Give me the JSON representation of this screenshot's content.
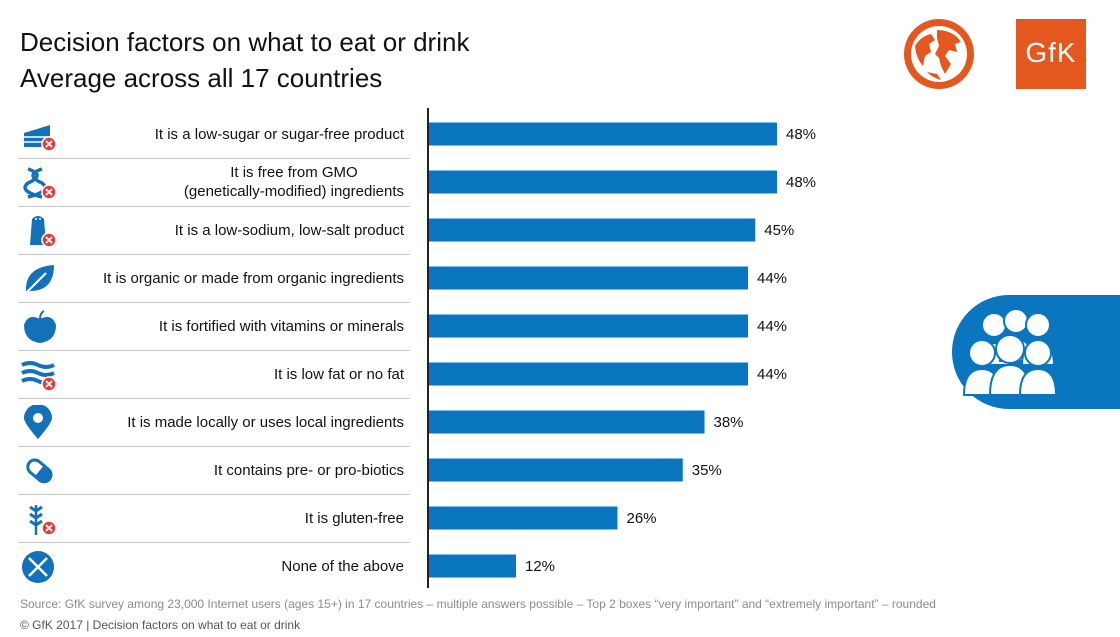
{
  "title": {
    "line1": "Decision factors on what to eat or drink",
    "line2": "Average across all 17 countries"
  },
  "brand": {
    "logo_text": "GfK",
    "logo_color": "#e4581f",
    "bar_color": "#0a76bf",
    "icon_color": "#1271b8",
    "cross_color": "#e63b3b"
  },
  "chart_data": {
    "type": "bar",
    "orientation": "horizontal",
    "categories": [
      "It is a low-sugar or sugar-free product",
      "It is free from GMO\n(genetically-modified) ingredients",
      "It is a low-sodium, low-salt product",
      "It is organic or made from organic ingredients",
      "It is fortified with vitamins or minerals",
      "It is low fat or no fat",
      "It is made locally or uses local ingredients",
      "It contains pre- or pro-biotics",
      "It is gluten-free",
      "None of the above"
    ],
    "values": [
      48,
      48,
      45,
      44,
      44,
      44,
      38,
      35,
      26,
      12
    ],
    "value_labels": [
      "48%",
      "48%",
      "45%",
      "44%",
      "44%",
      "44%",
      "38%",
      "35%",
      "26%",
      "12%"
    ],
    "unit": "%",
    "xlim": [
      0,
      100
    ],
    "grid": false,
    "legend": "none",
    "icons": [
      "cake-icon",
      "dna-icon",
      "salt-shaker-icon",
      "leaf-icon",
      "apple-icon",
      "bacon-icon",
      "location-pin-icon",
      "capsule-icon",
      "wheat-icon",
      "none-cross-icon"
    ]
  },
  "footer": {
    "source": "Source: GfK survey among 23,000 Internet users (ages 15+) in 17 countries – multiple answers possible – Top 2 boxes “very important” and “extremely important” – rounded",
    "copyright": "© GfK 2017 | Decision factors on what to eat or drink"
  }
}
